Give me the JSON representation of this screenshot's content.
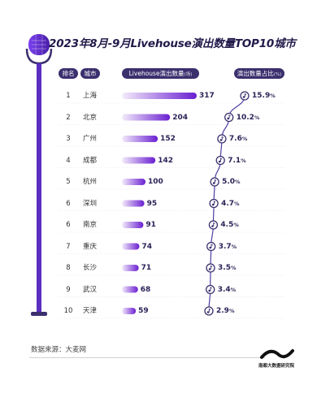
{
  "title": "2023年8月-9月Livehouse演出数量TOP10城市",
  "headers": {
    "rank": "排名",
    "city": "城市",
    "count": "Livehouse演出数量",
    "count_unit": "(场)",
    "share": "演出数量占比",
    "share_unit": "(%)"
  },
  "source": "数据来源：大麦网",
  "logo_text": "南都大数据研究院",
  "colors": {
    "bar_start": "#f4ecfb",
    "bar_end": "#6a1fd1",
    "header_bg": "#3b2f6e",
    "accent_line": "#4b3fa0",
    "mic": "#5b2fc0"
  },
  "icon": "microphone-icon",
  "chart_data": {
    "type": "bar",
    "title": "2023年8月-9月Livehouse演出数量TOP10城市",
    "categories": [
      "上海",
      "北京",
      "广州",
      "成都",
      "杭州",
      "深圳",
      "南京",
      "重庆",
      "长沙",
      "武汉",
      "天津"
    ],
    "ranks": [
      "1",
      "2",
      "3",
      "4",
      "5",
      "6",
      "6",
      "7",
      "8",
      "9",
      "10"
    ],
    "series": [
      {
        "name": "Livehouse演出数量",
        "values": [
          317,
          204,
          152,
          142,
          100,
          95,
          91,
          74,
          71,
          68,
          59
        ]
      },
      {
        "name": "演出数量占比",
        "values": [
          15.9,
          10.2,
          7.6,
          7.1,
          5.0,
          4.7,
          4.5,
          3.7,
          3.5,
          3.4,
          2.9
        ]
      }
    ],
    "share_labels": [
      "15.9",
      "10.2",
      "7.6",
      "7.1",
      "5.0",
      "4.7",
      "4.5",
      "3.7",
      "3.5",
      "3.4",
      "2.9"
    ],
    "share_unit": "%"
  }
}
